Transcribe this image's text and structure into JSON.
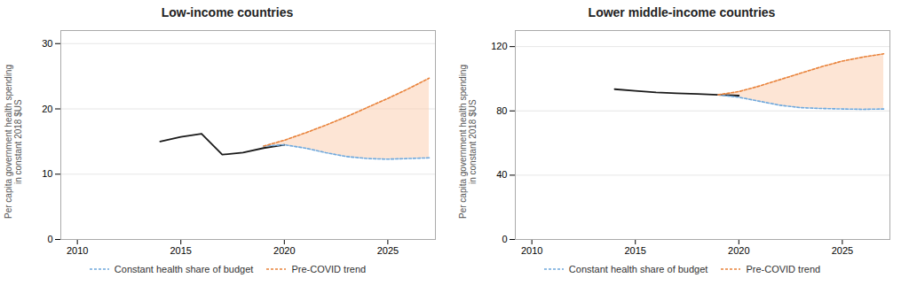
{
  "chart_data": [
    {
      "type": "line",
      "title": "Low-income countries",
      "ylabel": "Per capita government health spending\nin constant 2018 $US",
      "xlim": [
        2009.2,
        2027.3
      ],
      "xticks": [
        2010,
        2015,
        2020,
        2025
      ],
      "ylim": [
        0,
        32
      ],
      "yticks": [
        0,
        10,
        20,
        30
      ],
      "grid": true,
      "legend": "bottom",
      "series": [
        {
          "type": "area",
          "color": "#FBCFB2",
          "x": [
            2019,
            2020,
            2021,
            2022,
            2023,
            2024,
            2025,
            2026,
            2027
          ],
          "values": [
            14.3,
            15.2,
            16.3,
            17.5,
            18.8,
            20.2,
            21.6,
            23.1,
            24.7
          ],
          "lower": [
            14.3,
            14.5,
            14.0,
            13.3,
            12.7,
            12.4,
            12.3,
            12.4,
            12.5
          ]
        },
        {
          "color": "#1a1a1a",
          "line_style": "solid",
          "x": [
            2014,
            2015,
            2016,
            2017,
            2018,
            2019,
            2020
          ],
          "values": [
            15.0,
            15.7,
            16.2,
            13.0,
            13.3,
            14.0,
            14.5
          ]
        },
        {
          "name": "Constant health share of budget",
          "color": "#6fa8dc",
          "line_style": "dashed",
          "x": [
            2019,
            2020,
            2021,
            2022,
            2023,
            2024,
            2025,
            2026,
            2027
          ],
          "values": [
            14.3,
            14.5,
            14.0,
            13.3,
            12.7,
            12.4,
            12.3,
            12.4,
            12.5
          ]
        },
        {
          "name": "Pre-COVID trend",
          "color": "#E8823A",
          "line_style": "dashed",
          "x": [
            2019,
            2020,
            2021,
            2022,
            2023,
            2024,
            2025,
            2026,
            2027
          ],
          "values": [
            14.3,
            15.2,
            16.3,
            17.5,
            18.8,
            20.2,
            21.6,
            23.1,
            24.7
          ]
        }
      ]
    },
    {
      "type": "line",
      "title": "Lower middle-income countries",
      "ylabel": "Per capita government health spending\nin constant 2018 $US",
      "xlim": [
        2009.2,
        2027.3
      ],
      "xticks": [
        2010,
        2015,
        2020,
        2025
      ],
      "ylim": [
        0,
        130
      ],
      "yticks": [
        0,
        40,
        80,
        120
      ],
      "grid": true,
      "legend": "bottom",
      "series": [
        {
          "type": "area",
          "color": "#FBCFB2",
          "x": [
            2019,
            2020,
            2021,
            2022,
            2023,
            2024,
            2025,
            2026,
            2027
          ],
          "values": [
            90.0,
            92.0,
            95.5,
            99.5,
            103.5,
            107.5,
            111.0,
            113.5,
            115.5
          ],
          "lower": [
            90.0,
            88.5,
            86.0,
            83.5,
            82.0,
            81.5,
            81.2,
            81.0,
            81.2
          ]
        },
        {
          "color": "#1a1a1a",
          "line_style": "solid",
          "x": [
            2014,
            2015,
            2016,
            2017,
            2018,
            2019,
            2020
          ],
          "values": [
            93.5,
            92.5,
            91.5,
            91.0,
            90.5,
            90.0,
            89.5
          ]
        },
        {
          "name": "Constant health share of budget",
          "color": "#6fa8dc",
          "line_style": "dashed",
          "x": [
            2019,
            2020,
            2021,
            2022,
            2023,
            2024,
            2025,
            2026,
            2027
          ],
          "values": [
            90.0,
            88.5,
            86.0,
            83.5,
            82.0,
            81.5,
            81.2,
            81.0,
            81.2
          ]
        },
        {
          "name": "Pre-COVID trend",
          "color": "#E8823A",
          "line_style": "dashed",
          "x": [
            2019,
            2020,
            2021,
            2022,
            2023,
            2024,
            2025,
            2026,
            2027
          ],
          "values": [
            90.0,
            92.0,
            95.5,
            99.5,
            103.5,
            107.5,
            111.0,
            113.5,
            115.5
          ]
        }
      ]
    }
  ]
}
